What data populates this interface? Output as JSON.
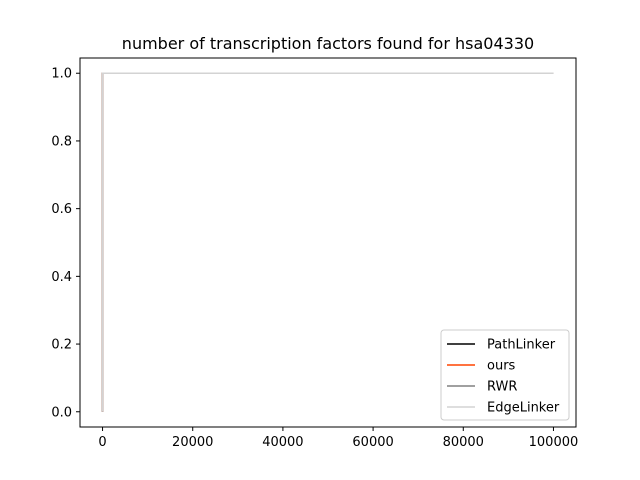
{
  "chart_data": {
    "type": "line",
    "title": "number of transcription factors found for hsa04330",
    "xlabel": "",
    "ylabel": "",
    "xlim": [
      -5000,
      105000
    ],
    "ylim": [
      -0.045,
      1.045
    ],
    "xticks": [
      0,
      20000,
      40000,
      60000,
      80000,
      100000
    ],
    "xtick_labels": [
      "0",
      "20000",
      "40000",
      "60000",
      "80000",
      "100000"
    ],
    "yticks": [
      0.0,
      0.2,
      0.4,
      0.6,
      0.8,
      1.0
    ],
    "ytick_labels": [
      "0.0",
      "0.2",
      "0.4",
      "0.6",
      "0.8",
      "1.0"
    ],
    "grid": false,
    "legend_position": "lower-right",
    "series": [
      {
        "name": "PathLinker",
        "color": "#000000",
        "x": [
          0,
          0,
          1,
          100000
        ],
        "y": [
          0,
          0.5,
          1,
          1
        ]
      },
      {
        "name": "ours",
        "color": "#ff4500",
        "x": [
          0,
          0,
          1,
          100000
        ],
        "y": [
          0,
          0.5,
          1,
          1
        ]
      },
      {
        "name": "RWR",
        "color": "#808080",
        "x": [
          0,
          0,
          1,
          100000
        ],
        "y": [
          0,
          0.5,
          1,
          1
        ]
      },
      {
        "name": "EdgeLinker",
        "color": "#d3d3d3",
        "x": [
          0,
          0,
          1,
          100000
        ],
        "y": [
          0,
          0.5,
          1,
          1
        ]
      }
    ]
  }
}
